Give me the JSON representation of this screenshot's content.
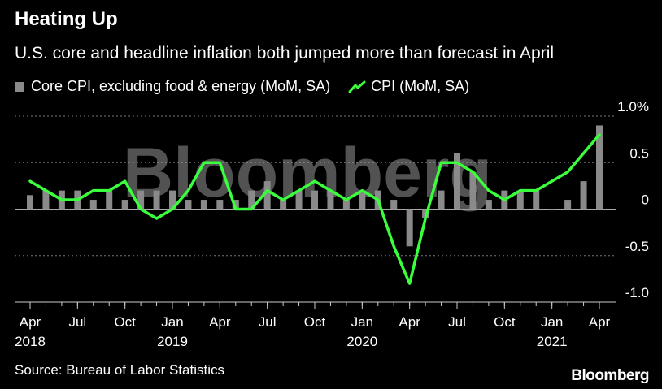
{
  "header": {
    "title": "Heating Up",
    "subtitle": "U.S. core and headline inflation both jumped more than forecast in April"
  },
  "legend": {
    "core_label": "Core CPI, excluding food & energy (MoM, SA)",
    "cpi_label": "CPI (MoM, SA)"
  },
  "footer": {
    "source": "Source: Bureau of Labor Statistics",
    "brand": "Bloomberg"
  },
  "watermark": "Bloomberg",
  "colors": {
    "core": "#8a8a8a",
    "cpi": "#39ff3c",
    "background": "#000000",
    "grid": "#777777"
  },
  "chart_data": {
    "type": "bar",
    "title": "Heating Up",
    "subtitle": "U.S. core and headline inflation both jumped more than forecast in April",
    "ylim": [
      -1.0,
      1.0
    ],
    "y_ticks": [
      1.0,
      0.5,
      0,
      -0.5,
      -1.0
    ],
    "y_tick_labels": [
      "1.0%",
      "0.5",
      "0",
      "-0.5",
      "-1.0"
    ],
    "x_ticks": [
      {
        "index": 0,
        "month": "Apr",
        "year": "2018"
      },
      {
        "index": 3,
        "month": "Jul",
        "year": ""
      },
      {
        "index": 6,
        "month": "Oct",
        "year": ""
      },
      {
        "index": 9,
        "month": "Jan",
        "year": "2019"
      },
      {
        "index": 12,
        "month": "Apr",
        "year": ""
      },
      {
        "index": 15,
        "month": "Jul",
        "year": ""
      },
      {
        "index": 18,
        "month": "Oct",
        "year": ""
      },
      {
        "index": 21,
        "month": "Jan",
        "year": "2020"
      },
      {
        "index": 24,
        "month": "Apr",
        "year": ""
      },
      {
        "index": 27,
        "month": "Jul",
        "year": ""
      },
      {
        "index": 30,
        "month": "Oct",
        "year": ""
      },
      {
        "index": 33,
        "month": "Jan",
        "year": "2021"
      },
      {
        "index": 36,
        "month": "Apr",
        "year": ""
      }
    ],
    "series": [
      {
        "name": "Core CPI, excluding food & energy (MoM, SA)",
        "type": "bar",
        "values": [
          0.15,
          0.2,
          0.2,
          0.2,
          0.1,
          0.2,
          0.1,
          0.2,
          0.2,
          0.2,
          0.1,
          0.1,
          0.1,
          0.1,
          0.2,
          0.3,
          0.1,
          0.2,
          0.2,
          0.2,
          0.1,
          0.2,
          0.2,
          0.1,
          -0.4,
          -0.1,
          0.2,
          0.6,
          0.4,
          0.1,
          0.2,
          0.2,
          0.2,
          0.0,
          0.1,
          0.3,
          0.9
        ]
      },
      {
        "name": "CPI (MoM, SA)",
        "type": "line",
        "values": [
          0.3,
          0.2,
          0.1,
          0.1,
          0.2,
          0.2,
          0.3,
          0.0,
          -0.1,
          0.0,
          0.2,
          0.5,
          0.5,
          0.0,
          0.0,
          0.2,
          0.1,
          0.2,
          0.3,
          0.2,
          0.1,
          0.2,
          0.1,
          -0.4,
          -0.8,
          -0.1,
          0.5,
          0.5,
          0.4,
          0.2,
          0.1,
          0.2,
          0.2,
          0.3,
          0.4,
          0.6,
          0.8
        ]
      }
    ]
  }
}
